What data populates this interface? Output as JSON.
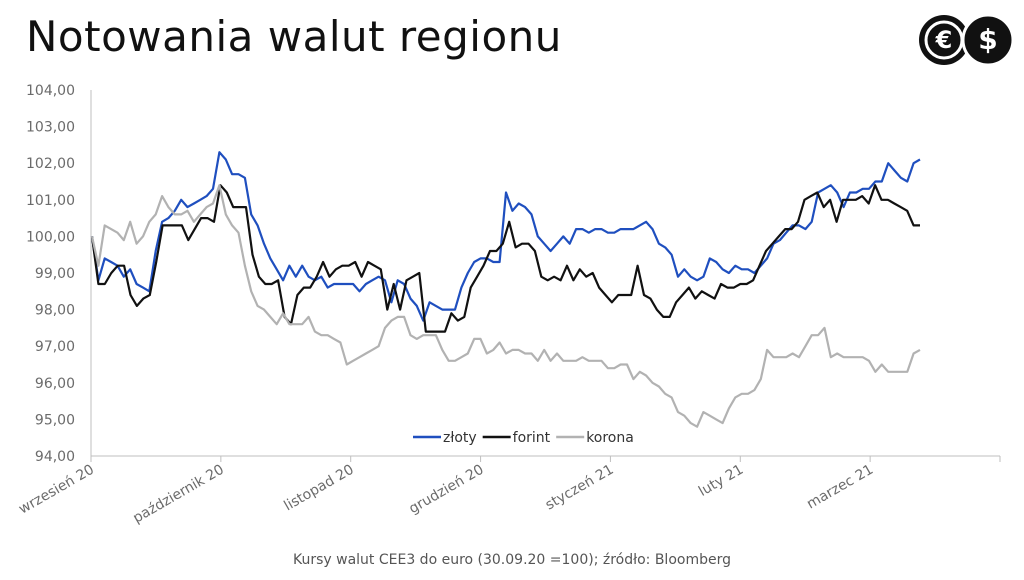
{
  "title": "Notowania walut regionu",
  "footer": "Kursy walut CEE3 do euro (30.09.20 =100); źródło: Bloomberg",
  "logo": {
    "icons": [
      "euro-icon",
      "dollar-icon"
    ],
    "color": "#111111"
  },
  "chart_data": {
    "type": "line",
    "ylim": [
      94,
      104
    ],
    "yticks": [
      "94,00",
      "95,00",
      "96,00",
      "97,00",
      "98,00",
      "99,00",
      "100,00",
      "101,00",
      "102,00",
      "103,00",
      "104,00"
    ],
    "xticks": [
      "wrzesień 20",
      "październik 20",
      "listopad 20",
      "grudzień 20",
      "styczeń 21",
      "luty 21",
      "marzec 21"
    ],
    "legend_position": "bottom-center",
    "grid": false,
    "series": [
      {
        "name": "złoty",
        "color": "#1f4fbf",
        "values": [
          100.0,
          98.8,
          99.4,
          99.3,
          99.2,
          98.9,
          99.1,
          98.7,
          98.6,
          98.5,
          99.6,
          100.4,
          100.5,
          100.7,
          101.0,
          100.8,
          100.9,
          101.0,
          101.1,
          101.3,
          102.3,
          102.1,
          101.7,
          101.7,
          101.6,
          100.6,
          100.3,
          99.8,
          99.4,
          99.1,
          98.8,
          99.2,
          98.9,
          99.2,
          98.9,
          98.8,
          98.9,
          98.6,
          98.7,
          98.7,
          98.7,
          98.7,
          98.5,
          98.7,
          98.8,
          98.9,
          98.8,
          98.2,
          98.8,
          98.7,
          98.3,
          98.1,
          97.7,
          98.2,
          98.1,
          98.0,
          98.0,
          98.0,
          98.6,
          99.0,
          99.3,
          99.4,
          99.4,
          99.3,
          99.3,
          101.2,
          100.7,
          100.9,
          100.8,
          100.6,
          100.0,
          99.8,
          99.6,
          99.8,
          100.0,
          99.8,
          100.2,
          100.2,
          100.1,
          100.2,
          100.2,
          100.1,
          100.1,
          100.2,
          100.2,
          100.2,
          100.3,
          100.4,
          100.2,
          99.8,
          99.7,
          99.5,
          98.9,
          99.1,
          98.9,
          98.8,
          98.9,
          99.4,
          99.3,
          99.1,
          99.0,
          99.2,
          99.1,
          99.1,
          99.0,
          99.2,
          99.4,
          99.8,
          99.9,
          100.1,
          100.3,
          100.3,
          100.2,
          100.4,
          101.2,
          101.3,
          101.4,
          101.2,
          100.8,
          101.2,
          101.2,
          101.3,
          101.3,
          101.5,
          101.5,
          102.0,
          101.8,
          101.6,
          101.5,
          102.0,
          102.1
        ]
      },
      {
        "name": "forint",
        "color": "#111111",
        "values": [
          100.0,
          98.7,
          98.7,
          99.0,
          99.2,
          99.2,
          98.4,
          98.1,
          98.3,
          98.4,
          99.3,
          100.3,
          100.3,
          100.3,
          100.3,
          99.9,
          100.2,
          100.5,
          100.5,
          100.4,
          101.4,
          101.2,
          100.8,
          100.8,
          100.8,
          99.5,
          98.9,
          98.7,
          98.7,
          98.8,
          97.8,
          97.6,
          98.4,
          98.6,
          98.6,
          98.9,
          99.3,
          98.9,
          99.1,
          99.2,
          99.2,
          99.3,
          98.9,
          99.3,
          99.2,
          99.1,
          98.0,
          98.7,
          98.0,
          98.8,
          98.9,
          99.0,
          97.4,
          97.4,
          97.4,
          97.4,
          97.9,
          97.7,
          97.8,
          98.6,
          98.9,
          99.2,
          99.6,
          99.6,
          99.8,
          100.4,
          99.7,
          99.8,
          99.8,
          99.6,
          98.9,
          98.8,
          98.9,
          98.8,
          99.2,
          98.8,
          99.1,
          98.9,
          99.0,
          98.6,
          98.4,
          98.2,
          98.4,
          98.4,
          98.4,
          99.2,
          98.4,
          98.3,
          98.0,
          97.8,
          97.8,
          98.2,
          98.4,
          98.6,
          98.3,
          98.5,
          98.4,
          98.3,
          98.7,
          98.6,
          98.6,
          98.7,
          98.7,
          98.8,
          99.2,
          99.6,
          99.8,
          100.0,
          100.2,
          100.2,
          100.4,
          101.0,
          101.1,
          101.2,
          100.8,
          101.0,
          100.4,
          101.0,
          101.0,
          101.0,
          101.1,
          100.9,
          101.4,
          101.0,
          101.0,
          100.9,
          100.8,
          100.7,
          100.3,
          100.3
        ]
      },
      {
        "name": "korona",
        "color": "#b2b2b2",
        "values": [
          100.0,
          99.2,
          100.3,
          100.2,
          100.1,
          99.9,
          100.4,
          99.8,
          100.0,
          100.4,
          100.6,
          101.1,
          100.8,
          100.6,
          100.6,
          100.7,
          100.4,
          100.6,
          100.8,
          100.9,
          101.4,
          100.6,
          100.3,
          100.1,
          99.2,
          98.5,
          98.1,
          98.0,
          97.8,
          97.6,
          97.9,
          97.6,
          97.6,
          97.6,
          97.8,
          97.4,
          97.3,
          97.3,
          97.2,
          97.1,
          96.5,
          96.6,
          96.7,
          96.8,
          96.9,
          97.0,
          97.5,
          97.7,
          97.8,
          97.8,
          97.3,
          97.2,
          97.3,
          97.3,
          97.3,
          96.9,
          96.6,
          96.6,
          96.7,
          96.8,
          97.2,
          97.2,
          96.8,
          96.9,
          97.1,
          96.8,
          96.9,
          96.9,
          96.8,
          96.8,
          96.6,
          96.9,
          96.6,
          96.8,
          96.6,
          96.6,
          96.6,
          96.7,
          96.6,
          96.6,
          96.6,
          96.4,
          96.4,
          96.5,
          96.5,
          96.1,
          96.3,
          96.2,
          96.0,
          95.9,
          95.7,
          95.6,
          95.2,
          95.1,
          94.9,
          94.8,
          95.2,
          95.1,
          95.0,
          94.9,
          95.3,
          95.6,
          95.7,
          95.7,
          95.8,
          96.1,
          96.9,
          96.7,
          96.7,
          96.7,
          96.8,
          96.7,
          97.0,
          97.3,
          97.3,
          97.5,
          96.7,
          96.8,
          96.7,
          96.7,
          96.7,
          96.7,
          96.6,
          96.3,
          96.5,
          96.3,
          96.3,
          96.3,
          96.3,
          96.8,
          96.9
        ]
      }
    ]
  }
}
